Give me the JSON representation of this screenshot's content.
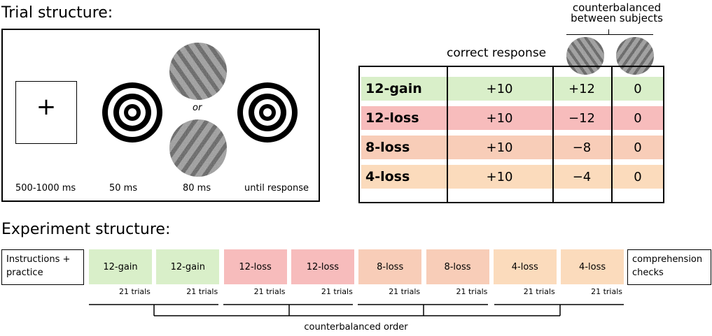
{
  "trial": {
    "title": "Trial structure:",
    "fixation": "+",
    "or_label": "or",
    "timings": [
      "500-1000 ms",
      "50 ms",
      "80 ms",
      "until response"
    ]
  },
  "payoff_table": {
    "column_header_correct": "correct response",
    "column_header_counterbalanced_line1": "counterbalanced",
    "column_header_counterbalanced_line2": "between subjects",
    "rows": [
      {
        "label": "12-gain",
        "correct": "+10",
        "stim_a": "+12",
        "stim_b": "0",
        "color": "#d9efc9"
      },
      {
        "label": "12-loss",
        "correct": "+10",
        "stim_a": "−12",
        "stim_b": "0",
        "color": "#f7bcbc"
      },
      {
        "label": "8-loss",
        "correct": "+10",
        "stim_a": "−8",
        "stim_b": "0",
        "color": "#f8cdb8"
      },
      {
        "label": "4-loss",
        "correct": "+10",
        "stim_a": "−4",
        "stim_b": "0",
        "color": "#fbdbbc"
      }
    ]
  },
  "experiment": {
    "title": "Experiment structure:",
    "instructions": "Instructions + practice",
    "comprehension": "comprehension checks",
    "blocks": [
      {
        "label": "12-gain",
        "trials": "21 trials",
        "color": "#d9efc9"
      },
      {
        "label": "12-gain",
        "trials": "21 trials",
        "color": "#d9efc9"
      },
      {
        "label": "12-loss",
        "trials": "21 trials",
        "color": "#f7bcbc"
      },
      {
        "label": "12-loss",
        "trials": "21 trials",
        "color": "#f7bcbc"
      },
      {
        "label": "8-loss",
        "trials": "21 trials",
        "color": "#f8cdb8"
      },
      {
        "label": "8-loss",
        "trials": "21 trials",
        "color": "#f8cdb8"
      },
      {
        "label": "4-loss",
        "trials": "21 trials",
        "color": "#fbdbbc"
      },
      {
        "label": "4-loss",
        "trials": "21 trials",
        "color": "#fbdbbc"
      }
    ],
    "counterbalanced_order": "counterbalanced order"
  }
}
